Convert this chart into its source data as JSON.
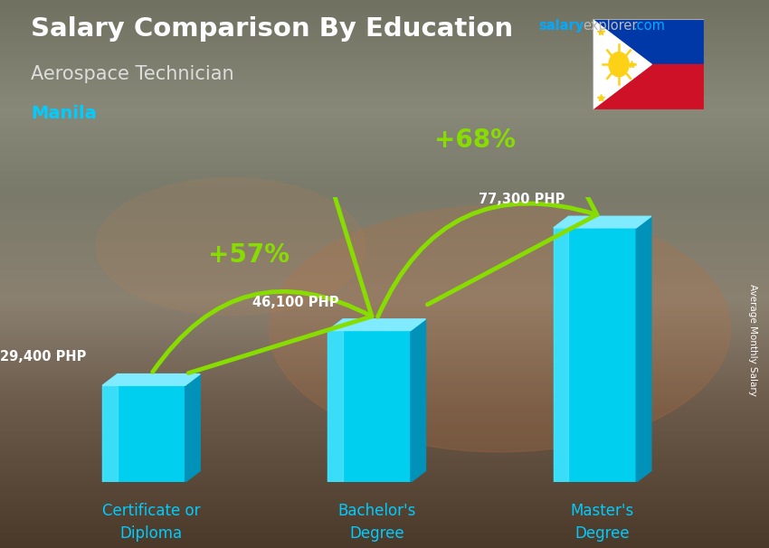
{
  "title": "Salary Comparison By Education",
  "subtitle": "Aerospace Technician",
  "city": "Manila",
  "ylabel": "Average Monthly Salary",
  "categories": [
    "Certificate or\nDiploma",
    "Bachelor's\nDegree",
    "Master's\nDegree"
  ],
  "values": [
    29400,
    46100,
    77300
  ],
  "value_labels": [
    "29,400 PHP",
    "46,100 PHP",
    "77,300 PHP"
  ],
  "pct_labels": [
    "+57%",
    "+68%"
  ],
  "bar_face_color": "#00CFEF",
  "bar_top_color": "#80EAFF",
  "bar_side_color": "#0092B8",
  "bar_highlight_color": "#50DFFF",
  "arrow_color": "#88DD00",
  "pct_color": "#88DD00",
  "title_color": "#FFFFFF",
  "subtitle_color": "#DDDDDD",
  "city_color": "#00CCFF",
  "watermark_salary_color": "#00AAFF",
  "watermark_explorer_color": "#BBBBBB",
  "watermark_com_color": "#00AAFF",
  "label_color": "#FFFFFF",
  "value_label_color": "#FFFFFF",
  "xlabel_color": "#00CCFF",
  "bg_top_color": "#7A7A6A",
  "bg_bottom_color": "#5A4A3A",
  "figsize": [
    8.5,
    6.06
  ],
  "dpi": 100
}
